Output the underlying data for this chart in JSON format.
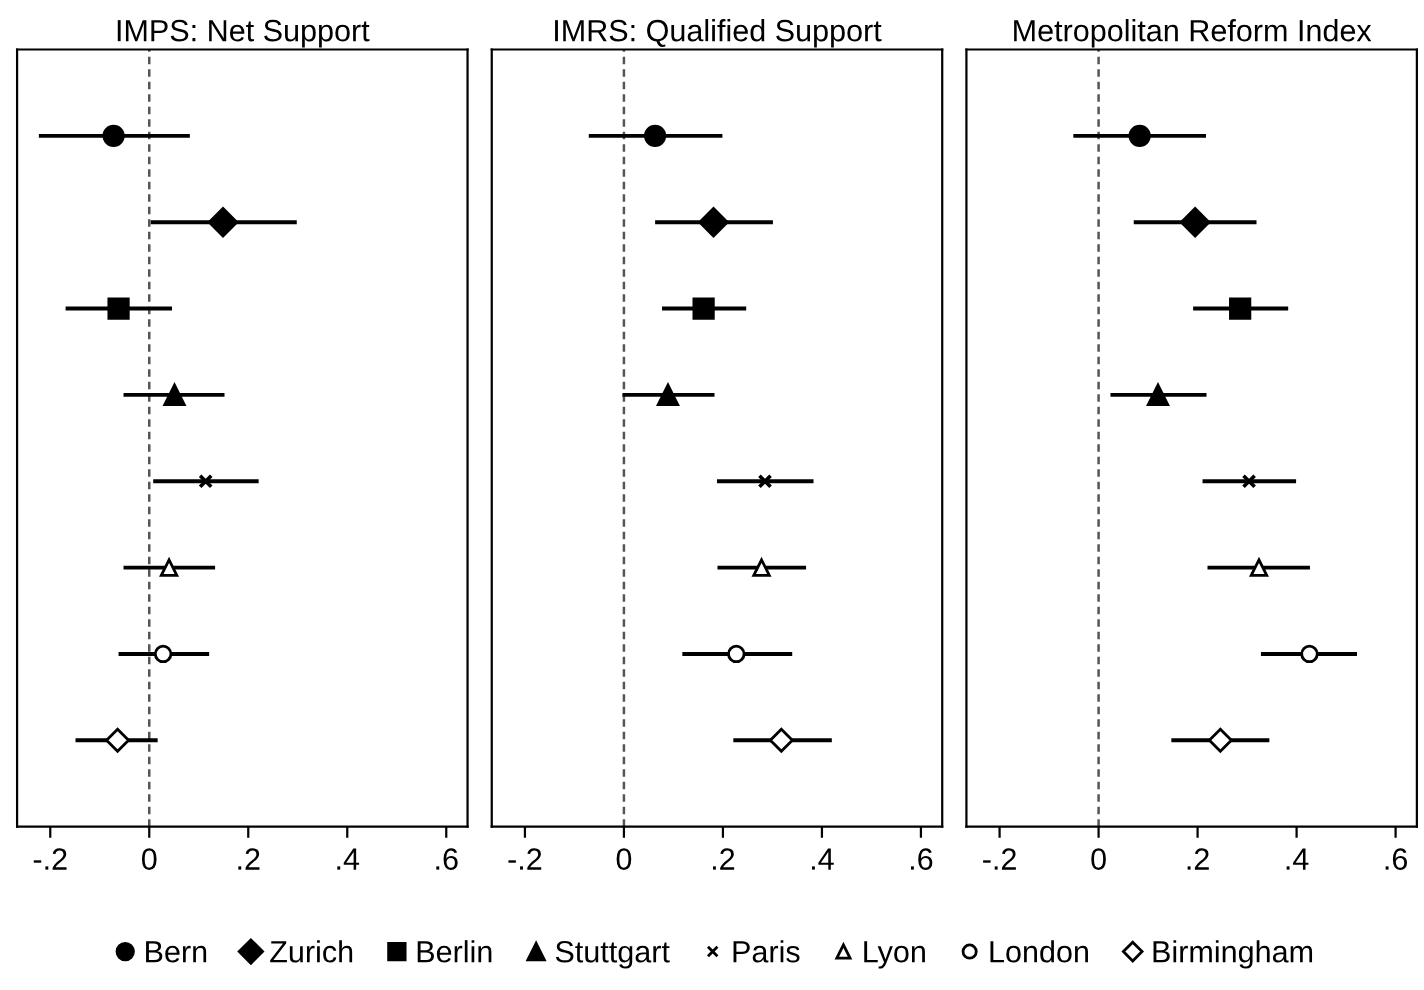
{
  "chart_data": [
    {
      "type": "scatter",
      "title": "IMPS: Net Support",
      "orientation": "horizontal",
      "categories": [
        null,
        null,
        null,
        null,
        null,
        null,
        null,
        null
      ],
      "xlim": [
        -0.267,
        0.643
      ],
      "xticks": [
        {
          "value": -0.2,
          "label": "-.2"
        },
        0,
        {
          "value": 0.2,
          "label": ".2"
        },
        {
          "value": 0.4,
          "label": ".4"
        },
        {
          "value": 0.6,
          "label": ".6"
        }
      ],
      "tick_labels": "x",
      "grid": false,
      "legend": "bottom",
      "ref_lines": [
        {
          "axis": "x",
          "value": 0,
          "color": "#555555",
          "line_style": "dashed"
        }
      ],
      "series": [
        {
          "name": "Bern",
          "color": "#000000",
          "marker": "circle",
          "values": [
            -0.072,
            null,
            null,
            null,
            null,
            null,
            null,
            null
          ],
          "errors": [
            [
              -0.223,
              0.082
            ],
            null,
            null,
            null,
            null,
            null,
            null,
            null
          ]
        },
        {
          "name": "Zurich",
          "color": "#000000",
          "marker": "diamond",
          "values": [
            null,
            0.149,
            null,
            null,
            null,
            null,
            null,
            null
          ],
          "errors": [
            null,
            [
              0.003,
              0.298
            ],
            null,
            null,
            null,
            null,
            null,
            null
          ]
        },
        {
          "name": "Berlin",
          "color": "#000000",
          "marker": "square",
          "values": [
            null,
            null,
            -0.062,
            null,
            null,
            null,
            null,
            null
          ],
          "errors": [
            null,
            null,
            [
              -0.169,
              0.046
            ],
            null,
            null,
            null,
            null,
            null
          ]
        },
        {
          "name": "Stuttgart",
          "color": "#000000",
          "marker": "triangle",
          "values": [
            null,
            null,
            null,
            0.051,
            null,
            null,
            null,
            null
          ],
          "errors": [
            null,
            null,
            null,
            [
              -0.052,
              0.152
            ],
            null,
            null,
            null,
            null
          ]
        },
        {
          "name": "Paris",
          "color": "#000000",
          "marker": "cross",
          "values": [
            null,
            null,
            null,
            null,
            0.114,
            null,
            null,
            null
          ],
          "errors": [
            null,
            null,
            null,
            null,
            [
              0.008,
              0.221
            ],
            null,
            null,
            null
          ]
        },
        {
          "name": "Lyon",
          "color": "#000000",
          "marker": "triangle-open",
          "values": [
            null,
            null,
            null,
            null,
            null,
            0.04,
            null,
            null
          ],
          "errors": [
            null,
            null,
            null,
            null,
            null,
            [
              -0.052,
              0.133
            ],
            null,
            null
          ]
        },
        {
          "name": "London",
          "color": "#000000",
          "marker": "circle-open",
          "values": [
            null,
            null,
            null,
            null,
            null,
            null,
            0.028,
            null
          ],
          "errors": [
            null,
            null,
            null,
            null,
            null,
            null,
            [
              -0.062,
              0.121
            ],
            null
          ]
        },
        {
          "name": "Birmingham",
          "color": "#000000",
          "marker": "diamond-open",
          "values": [
            null,
            null,
            null,
            null,
            null,
            null,
            null,
            -0.064
          ],
          "errors": [
            null,
            null,
            null,
            null,
            null,
            null,
            null,
            [
              -0.149,
              0.017
            ]
          ]
        }
      ]
    },
    {
      "type": "scatter",
      "title": "IMRS: Qualified Support",
      "orientation": "horizontal",
      "categories": [
        null,
        null,
        null,
        null,
        null,
        null,
        null,
        null
      ],
      "xlim": [
        -0.267,
        0.643
      ],
      "xticks": [
        {
          "value": -0.2,
          "label": "-.2"
        },
        0,
        {
          "value": 0.2,
          "label": ".2"
        },
        {
          "value": 0.4,
          "label": ".4"
        },
        {
          "value": 0.6,
          "label": ".6"
        }
      ],
      "tick_labels": "x",
      "grid": false,
      "ref_lines": [
        {
          "axis": "x",
          "value": 0,
          "color": "#555555",
          "line_style": "dashed"
        }
      ],
      "series": [
        {
          "color": "#000000",
          "marker": "circle",
          "values": [
            0.063,
            null,
            null,
            null,
            null,
            null,
            null,
            null
          ],
          "errors": [
            [
              -0.071,
              0.199
            ],
            null,
            null,
            null,
            null,
            null,
            null,
            null
          ]
        },
        {
          "color": "#000000",
          "marker": "diamond",
          "values": [
            null,
            0.181,
            null,
            null,
            null,
            null,
            null,
            null
          ],
          "errors": [
            null,
            [
              0.063,
              0.301
            ],
            null,
            null,
            null,
            null,
            null,
            null
          ]
        },
        {
          "color": "#000000",
          "marker": "square",
          "values": [
            null,
            null,
            0.161,
            null,
            null,
            null,
            null,
            null
          ],
          "errors": [
            null,
            null,
            [
              0.077,
              0.247
            ],
            null,
            null,
            null,
            null,
            null
          ]
        },
        {
          "color": "#000000",
          "marker": "triangle",
          "values": [
            null,
            null,
            null,
            0.089,
            null,
            null,
            null,
            null
          ],
          "errors": [
            null,
            null,
            null,
            [
              -0.003,
              0.183
            ],
            null,
            null,
            null,
            null
          ]
        },
        {
          "color": "#000000",
          "marker": "cross",
          "values": [
            null,
            null,
            null,
            null,
            0.285,
            null,
            null,
            null
          ],
          "errors": [
            null,
            null,
            null,
            null,
            [
              0.188,
              0.383
            ],
            null,
            null,
            null
          ]
        },
        {
          "color": "#000000",
          "marker": "triangle-open",
          "values": [
            null,
            null,
            null,
            null,
            null,
            0.278,
            null,
            null
          ],
          "errors": [
            null,
            null,
            null,
            null,
            null,
            [
              0.189,
              0.368
            ],
            null,
            null
          ]
        },
        {
          "color": "#000000",
          "marker": "circle-open",
          "values": [
            null,
            null,
            null,
            null,
            null,
            null,
            0.227,
            null
          ],
          "errors": [
            null,
            null,
            null,
            null,
            null,
            null,
            [
              0.118,
              0.34
            ],
            null
          ]
        },
        {
          "color": "#000000",
          "marker": "diamond-open",
          "values": [
            null,
            null,
            null,
            null,
            null,
            null,
            null,
            0.318
          ],
          "errors": [
            null,
            null,
            null,
            null,
            null,
            null,
            null,
            [
              0.221,
              0.42
            ]
          ]
        }
      ]
    },
    {
      "type": "scatter",
      "title": "Metropolitan Reform Index",
      "orientation": "horizontal",
      "categories": [
        null,
        null,
        null,
        null,
        null,
        null,
        null,
        null
      ],
      "xlim": [
        -0.267,
        0.643
      ],
      "xticks": [
        {
          "value": -0.2,
          "label": "-.2"
        },
        0,
        {
          "value": 0.2,
          "label": ".2"
        },
        {
          "value": 0.4,
          "label": ".4"
        },
        {
          "value": 0.6,
          "label": ".6"
        }
      ],
      "tick_labels": "x",
      "grid": false,
      "ref_lines": [
        {
          "axis": "x",
          "value": 0,
          "color": "#555555",
          "line_style": "dashed"
        }
      ],
      "series": [
        {
          "color": "#000000",
          "marker": "circle",
          "values": [
            0.083,
            null,
            null,
            null,
            null,
            null,
            null,
            null
          ],
          "errors": [
            [
              -0.051,
              0.217
            ],
            null,
            null,
            null,
            null,
            null,
            null,
            null
          ]
        },
        {
          "color": "#000000",
          "marker": "diamond",
          "values": [
            null,
            0.195,
            null,
            null,
            null,
            null,
            null,
            null
          ],
          "errors": [
            null,
            [
              0.071,
              0.319
            ],
            null,
            null,
            null,
            null,
            null,
            null
          ]
        },
        {
          "color": "#000000",
          "marker": "square",
          "values": [
            null,
            null,
            0.286,
            null,
            null,
            null,
            null,
            null
          ],
          "errors": [
            null,
            null,
            [
              0.191,
              0.383
            ],
            null,
            null,
            null,
            null,
            null
          ]
        },
        {
          "color": "#000000",
          "marker": "triangle",
          "values": [
            null,
            null,
            null,
            0.12,
            null,
            null,
            null,
            null
          ],
          "errors": [
            null,
            null,
            null,
            [
              0.024,
              0.218
            ],
            null,
            null,
            null,
            null
          ]
        },
        {
          "color": "#000000",
          "marker": "cross",
          "values": [
            null,
            null,
            null,
            null,
            0.304,
            null,
            null,
            null
          ],
          "errors": [
            null,
            null,
            null,
            null,
            [
              0.21,
              0.399
            ],
            null,
            null,
            null
          ]
        },
        {
          "color": "#000000",
          "marker": "triangle-open",
          "values": [
            null,
            null,
            null,
            null,
            null,
            0.324,
            null,
            null
          ],
          "errors": [
            null,
            null,
            null,
            null,
            null,
            [
              0.22,
              0.427
            ],
            null,
            null
          ]
        },
        {
          "color": "#000000",
          "marker": "circle-open",
          "values": [
            null,
            null,
            null,
            null,
            null,
            null,
            0.426,
            null
          ],
          "errors": [
            null,
            null,
            null,
            null,
            null,
            null,
            [
              0.328,
              0.522
            ],
            null
          ]
        },
        {
          "color": "#000000",
          "marker": "diamond-open",
          "values": [
            null,
            null,
            null,
            null,
            null,
            null,
            null,
            0.246
          ],
          "errors": [
            null,
            null,
            null,
            null,
            null,
            null,
            null,
            [
              0.147,
              0.345
            ]
          ]
        }
      ]
    }
  ]
}
